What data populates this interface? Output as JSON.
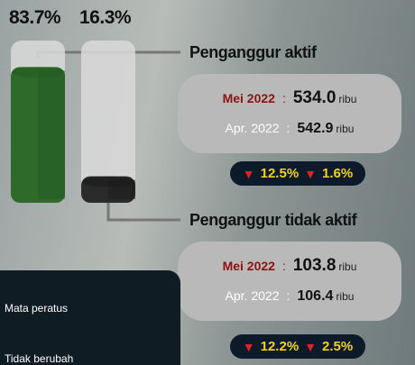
{
  "shares": {
    "values": [
      83.7,
      16.3
    ],
    "labels": [
      "83.7%",
      "16.3%"
    ]
  },
  "sections": [
    {
      "title": "Penganggur aktif",
      "rows": [
        {
          "period": "Mei 2022",
          "sep": ":",
          "value": "534.0",
          "unit": "ribu"
        },
        {
          "period": "Apr. 2022",
          "sep": ":",
          "value": "542.9",
          "unit": "ribu"
        }
      ],
      "changes": [
        "12.5%",
        "1.6%"
      ]
    },
    {
      "title": "Penganggur tidak aktif",
      "rows": [
        {
          "period": "Mei 2022",
          "sep": ":",
          "value": "103.8",
          "unit": "ribu"
        },
        {
          "period": "Apr. 2022",
          "sep": ":",
          "value": "106.4",
          "unit": "ribu"
        }
      ],
      "changes": [
        "12.2%",
        "2.5%"
      ]
    }
  ],
  "legend": [
    "Mata peratus",
    "Tidak berubah"
  ]
}
